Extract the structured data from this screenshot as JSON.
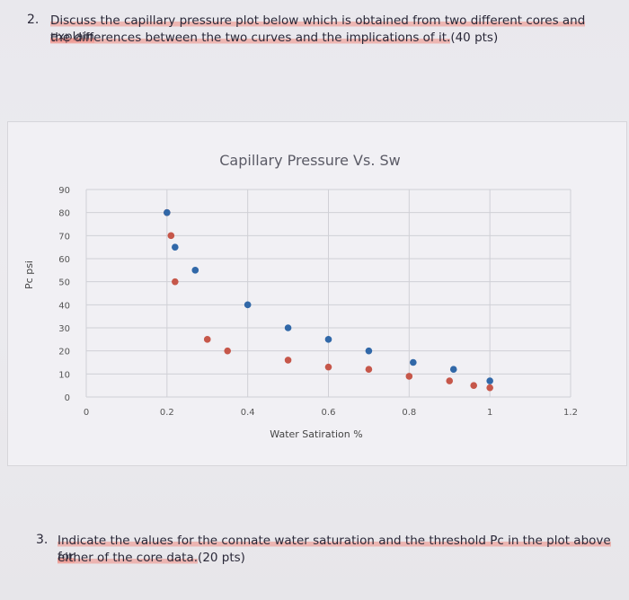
{
  "question2": {
    "number": "2.",
    "line1": "Discuss the capillary pressure plot below which is obtained from two different cores and explain",
    "line2_highlighted": "the differences between the two curves and the implications of it.",
    "line2_rest": "(40 pts)"
  },
  "question3": {
    "number": "3.",
    "line1": "Indicate the values for the connate water saturation and the threshold Pc in the plot above for",
    "line2_highlighted": "either of the core data.",
    "line2_rest": "(20 pts)"
  },
  "colors": {
    "series_a": "#c6574a",
    "series_b": "#3168a8",
    "highlight": "#f08c82"
  },
  "chart_data": {
    "type": "scatter",
    "title": "Capillary Pressure Vs. Sw",
    "xlabel": "Water Satiration %",
    "ylabel": "Pc psi",
    "xlim": [
      0,
      1.2
    ],
    "ylim": [
      0,
      90
    ],
    "x_ticks": [
      "0",
      "0.2",
      "0.4",
      "0.6",
      "0.8",
      "1",
      "1.2"
    ],
    "y_ticks": [
      "0",
      "10",
      "20",
      "30",
      "40",
      "50",
      "60",
      "70",
      "80",
      "90"
    ],
    "grid": true,
    "series": [
      {
        "color": "#c6574a",
        "points": [
          [
            0.2,
            80
          ],
          [
            0.21,
            70
          ],
          [
            0.22,
            50
          ],
          [
            0.3,
            25
          ],
          [
            0.35,
            20
          ],
          [
            0.5,
            16
          ],
          [
            0.6,
            13
          ],
          [
            0.7,
            12
          ],
          [
            0.8,
            9
          ],
          [
            0.9,
            7
          ],
          [
            0.96,
            5
          ],
          [
            1.0,
            4
          ]
        ]
      },
      {
        "color": "#3168a8",
        "points": [
          [
            0.2,
            80
          ],
          [
            0.22,
            65
          ],
          [
            0.27,
            55
          ],
          [
            0.4,
            40
          ],
          [
            0.5,
            30
          ],
          [
            0.6,
            25
          ],
          [
            0.7,
            20
          ],
          [
            0.81,
            15
          ],
          [
            0.91,
            12
          ],
          [
            1.0,
            7
          ]
        ]
      }
    ]
  }
}
